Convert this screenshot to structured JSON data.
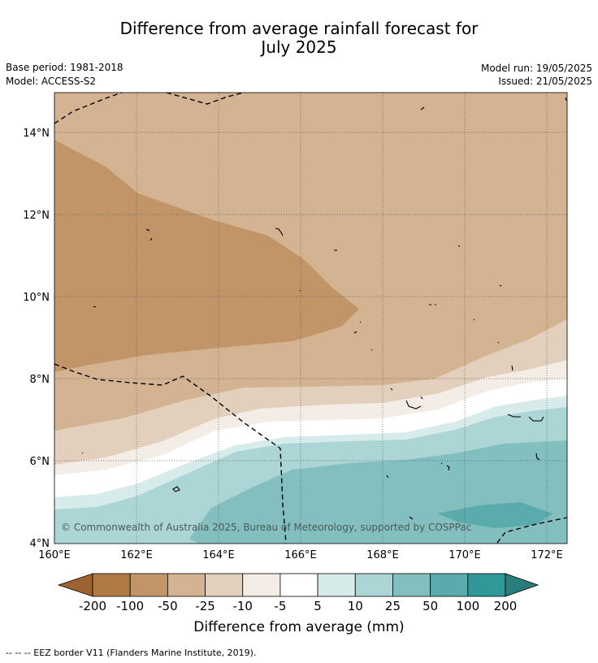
{
  "header": {
    "title_line1": "Difference from average rainfall forecast for",
    "title_line2": "July 2025",
    "base_period": "Base period: 1981-2018",
    "model": "Model: ACCESS-S2",
    "model_run": "Model run: 19/05/2025",
    "issued": "Issued: 21/05/2025"
  },
  "map": {
    "lon_labels": [
      "160°E",
      "162°E",
      "164°E",
      "166°E",
      "168°E",
      "170°E",
      "172°E"
    ],
    "lat_labels": [
      "14°N",
      "12°N",
      "10°N",
      "8°N",
      "6°N",
      "4°N"
    ],
    "copyright": "© Commonwealth of Australia 2025, Bureau of Meteorology, supported by COSPPac"
  },
  "colorbar": {
    "labels": [
      "-200",
      "-100",
      "-50",
      "-25",
      "-10",
      "-5",
      "5",
      "10",
      "25",
      "50",
      "100",
      "200"
    ],
    "colors": [
      "#9c6230",
      "#b07a45",
      "#c29569",
      "#d4b392",
      "#e3d0bc",
      "#f3ede6",
      "#ffffff",
      "#d7ebea",
      "#acd5d5",
      "#83bfbf",
      "#5aabab",
      "#309898",
      "#2a7d7d"
    ],
    "title": "Difference from average (mm)"
  },
  "footer": {
    "legend": "--  --  -- EEZ border V11 (Flanders Marine Institute, 2019)."
  }
}
